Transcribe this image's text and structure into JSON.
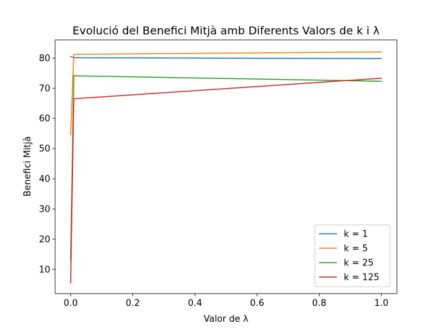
{
  "chart_data": {
    "type": "line",
    "title": "Evolució del Benefici Mitjà amb Diferents Valors de k i λ",
    "xlabel": "Valor de λ",
    "ylabel": "Benefici Mitjà",
    "xlim": [
      -0.05,
      1.05
    ],
    "ylim": [
      2,
      86
    ],
    "xticks": [
      0.0,
      0.2,
      0.4,
      0.6,
      0.8,
      1.0
    ],
    "xtick_labels": [
      "0.0",
      "0.2",
      "0.4",
      "0.6",
      "0.8",
      "1.0"
    ],
    "yticks": [
      10,
      20,
      30,
      40,
      50,
      60,
      70,
      80
    ],
    "ytick_labels": [
      "10",
      "20",
      "30",
      "40",
      "50",
      "60",
      "70",
      "80"
    ],
    "grid": false,
    "legend_position": "lower-right",
    "x": [
      0.0,
      0.01,
      1.0
    ],
    "series": [
      {
        "name": "k = 1",
        "color": "#1f77b4",
        "values": [
          80.5,
          80.1,
          79.8
        ]
      },
      {
        "name": "k = 5",
        "color": "#ff7f0e",
        "values": [
          54.5,
          81.2,
          82.0
        ]
      },
      {
        "name": "k = 25",
        "color": "#2ca02c",
        "values": [
          13.0,
          74.1,
          72.3
        ]
      },
      {
        "name": "k = 125",
        "color": "#d62728",
        "values": [
          5.5,
          66.5,
          73.3
        ]
      }
    ]
  }
}
